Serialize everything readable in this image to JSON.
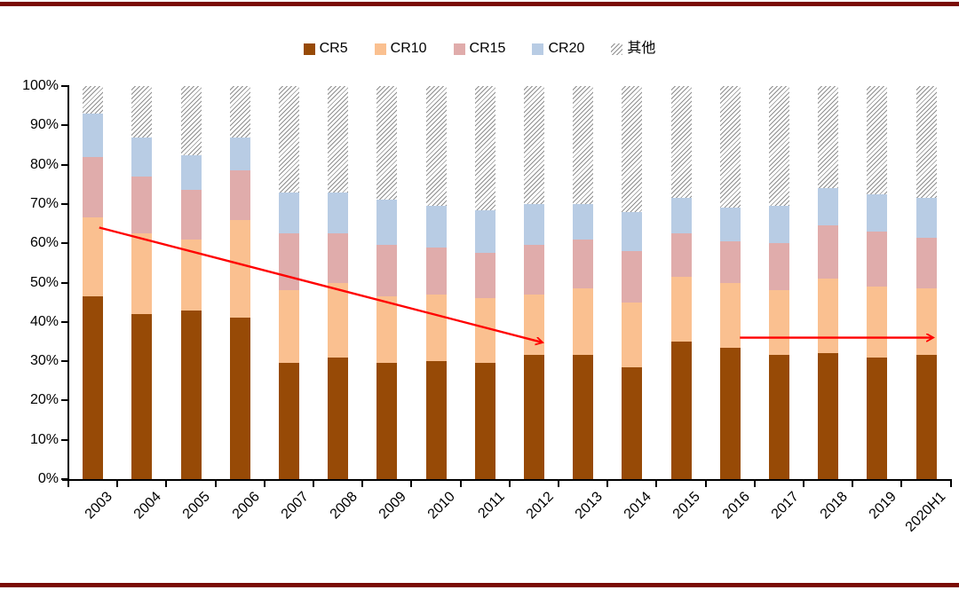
{
  "page": {
    "top_rule_color": "#7a0b03",
    "bottom_rule_color": "#7a0b03",
    "background": "#ffffff",
    "annotation_color": "#ff0000"
  },
  "legend": [
    {
      "label": "CR5",
      "type": "solid",
      "color": "#974a06",
      "icon": "square-swatch"
    },
    {
      "label": "CR10",
      "type": "solid",
      "color": "#fac090",
      "icon": "square-swatch"
    },
    {
      "label": "CR15",
      "type": "solid",
      "color": "#e0acab",
      "icon": "square-swatch"
    },
    {
      "label": "CR20",
      "type": "solid",
      "color": "#b8cce4",
      "icon": "square-swatch"
    },
    {
      "label": "其他",
      "type": "hatch",
      "color": "#8f8f8f",
      "icon": "hatch-swatch"
    }
  ],
  "chart_data": {
    "type": "bar",
    "stacked": true,
    "unit": "%",
    "title": "",
    "xlabel": "",
    "ylabel": "",
    "ylim": [
      0,
      100
    ],
    "ytick_step": 10,
    "ytick_labels": [
      "0%",
      "10%",
      "20%",
      "30%",
      "40%",
      "50%",
      "60%",
      "70%",
      "80%",
      "90%",
      "100%"
    ],
    "grid": false,
    "legend_position": "top-center",
    "categories": [
      "2003",
      "2004",
      "2005",
      "2006",
      "2007",
      "2008",
      "2009",
      "2010",
      "2011",
      "2012",
      "2013",
      "2014",
      "2015",
      "2016",
      "2017",
      "2018",
      "2019",
      "2020H1"
    ],
    "series": [
      {
        "name": "CR5",
        "color": "#974a06",
        "hatch": false,
        "values": [
          46.5,
          42,
          43,
          41,
          29.5,
          31,
          29.5,
          30,
          29.5,
          31.5,
          31.5,
          28.5,
          35,
          33.5,
          31.5,
          32,
          31,
          31.5
        ]
      },
      {
        "name": "CR10",
        "color": "#fac090",
        "hatch": false,
        "values": [
          20,
          20.5,
          18,
          25,
          18.5,
          19,
          17,
          17,
          16.5,
          15.5,
          17,
          16.5,
          16.5,
          16.5,
          16.5,
          19,
          18,
          17
        ]
      },
      {
        "name": "CR15",
        "color": "#e0acab",
        "hatch": false,
        "values": [
          15.5,
          14.5,
          12.5,
          12.5,
          14.5,
          12.5,
          13,
          12,
          11.5,
          12.5,
          12.5,
          13,
          11,
          10.5,
          12,
          13.5,
          14,
          13
        ]
      },
      {
        "name": "CR20",
        "color": "#b8cce4",
        "hatch": false,
        "values": [
          11,
          10,
          9,
          8.5,
          10.5,
          10.5,
          11.5,
          10.5,
          11,
          10.5,
          9,
          10,
          9,
          8.5,
          9.5,
          9.5,
          9.5,
          10
        ]
      },
      {
        "name": "其他",
        "color": "#8f8f8f",
        "hatch": true,
        "values": [
          7,
          13,
          17.5,
          13,
          27,
          27,
          29,
          30.5,
          31.5,
          30,
          30,
          32,
          28.5,
          31,
          30.5,
          26,
          27.5,
          28.5
        ]
      }
    ],
    "annotations": [
      {
        "type": "arrow",
        "description": "declining concentration trend",
        "x1_slot": 0.63,
        "y1_pct": 64,
        "x2_slot": 9.66,
        "y2_pct": 34.8
      },
      {
        "type": "arrow",
        "description": "flat concentration trend",
        "x1_slot": 13.7,
        "y1_pct": 36,
        "x2_slot": 17.63,
        "y2_pct": 36
      }
    ]
  }
}
